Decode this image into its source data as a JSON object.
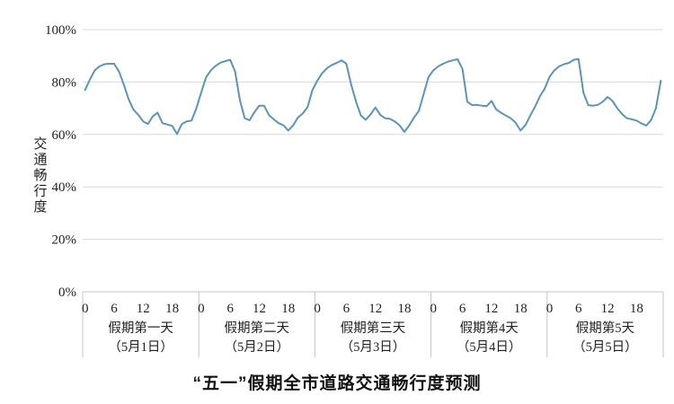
{
  "title": "“五一”假期全市道路交通畅行度预测",
  "chart_data": {
    "type": "line",
    "title": "“五一”假期全市道路交通畅行度预测",
    "ylabel": "交通畅行度",
    "ylim": [
      0,
      100
    ],
    "y_ticks": [
      0,
      20,
      40,
      60,
      80,
      100
    ],
    "y_tick_suffix": "%",
    "grid": "horizontal",
    "legend": "none",
    "hours_per_day": 24,
    "x_hour_ticks": [
      0,
      6,
      12,
      18
    ],
    "days": [
      {
        "name": "假期第一天",
        "date": "（5月1日）",
        "values": [
          77,
          81,
          84.5,
          86,
          86.8,
          87,
          87,
          84,
          79,
          73.5,
          69.5,
          67.5,
          65,
          64,
          67,
          68.3,
          64.3,
          63.8,
          63.3,
          60.2,
          64,
          65,
          65.3,
          70
        ]
      },
      {
        "name": "假期第二天",
        "date": "（5月2日）",
        "values": [
          76,
          81.8,
          84.5,
          86.2,
          87.4,
          88,
          88.5,
          84,
          73,
          66.2,
          65.4,
          68.5,
          71,
          71,
          67.4,
          65.8,
          64.3,
          63.5,
          61.5,
          63.5,
          66.5,
          68,
          70.5,
          77
        ]
      },
      {
        "name": "假期第三天",
        "date": "（5月3日）",
        "values": [
          80.5,
          83.4,
          85.3,
          86.5,
          87.3,
          88.3,
          87,
          79,
          72.5,
          67.3,
          65.6,
          67.6,
          70.3,
          67.5,
          66.2,
          66,
          65,
          63.5,
          61,
          63.5,
          66.5,
          69,
          75.5,
          82
        ]
      },
      {
        "name": "假期第4天",
        "date": "（5月4日）",
        "values": [
          84.5,
          86,
          87,
          87.8,
          88.3,
          88.7,
          85,
          72.5,
          71.2,
          71.3,
          71,
          70.8,
          72.8,
          69.5,
          68.3,
          67.2,
          66.2,
          64.5,
          61.5,
          63.5,
          67.2,
          70.5,
          74.5,
          77.5
        ]
      },
      {
        "name": "假期第5天",
        "date": "（5月5日）",
        "values": [
          82,
          84.5,
          86,
          86.8,
          87.3,
          88.5,
          88.8,
          76,
          71.2,
          71,
          71.3,
          72.5,
          74.3,
          72.8,
          70,
          67.8,
          66.2,
          65.8,
          65.3,
          64.2,
          63.4,
          65.5,
          70,
          80.5
        ]
      }
    ],
    "colors": {
      "line": "#5d93b7",
      "grid": "#d9d9d9",
      "axis": "#c4c4c4",
      "text": "#1f1f1f"
    }
  }
}
